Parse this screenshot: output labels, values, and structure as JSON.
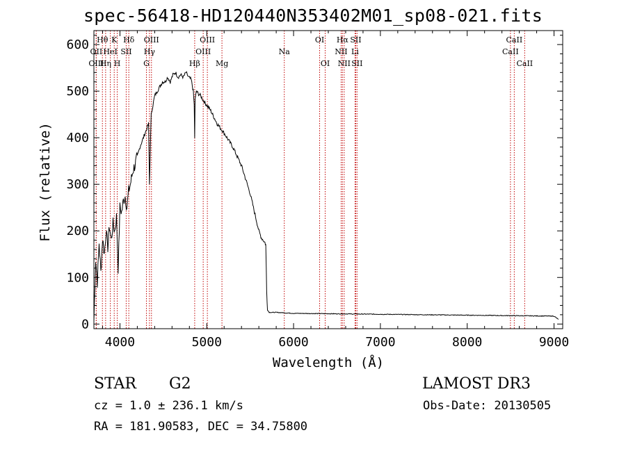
{
  "chart_data": {
    "type": "line",
    "title": "spec-56418-HD120440N353402M01_sp08-021.fits",
    "xlabel": "Wavelength (Å)",
    "ylabel": "Flux (relative)",
    "xlim": [
      3700,
      9100
    ],
    "ylim": [
      -10,
      630
    ],
    "xticks": [
      4000,
      5000,
      6000,
      7000,
      8000,
      9000
    ],
    "yticks": [
      0,
      100,
      200,
      300,
      400,
      500,
      600
    ],
    "series": [
      {
        "name": "flux",
        "x": [
          3700,
          3720,
          3740,
          3760,
          3780,
          3800,
          3820,
          3840,
          3860,
          3880,
          3900,
          3920,
          3940,
          3960,
          3980,
          4000,
          4020,
          4040,
          4060,
          4080,
          4100,
          4120,
          4150,
          4180,
          4200,
          4230,
          4260,
          4290,
          4310,
          4330,
          4340,
          4360,
          4380,
          4400,
          4430,
          4460,
          4490,
          4520,
          4550,
          4580,
          4610,
          4640,
          4670,
          4700,
          4730,
          4760,
          4790,
          4820,
          4845,
          4855,
          4861,
          4866,
          4880,
          4900,
          4930,
          4960,
          5000,
          5040,
          5080,
          5120,
          5160,
          5200,
          5250,
          5300,
          5350,
          5400,
          5450,
          5500,
          5550,
          5600,
          5630,
          5650,
          5670,
          5680,
          5690,
          5700,
          5720,
          5800,
          6000,
          6500,
          7000,
          7500,
          8000,
          8500,
          9000,
          9050
        ],
        "y": [
          5,
          140,
          90,
          175,
          110,
          185,
          150,
          200,
          165,
          210,
          180,
          215,
          200,
          230,
          120,
          250,
          240,
          265,
          275,
          250,
          285,
          300,
          330,
          345,
          360,
          380,
          395,
          410,
          420,
          430,
          300,
          450,
          470,
          490,
          500,
          510,
          520,
          520,
          530,
          520,
          535,
          540,
          530,
          535,
          530,
          540,
          530,
          525,
          500,
          470,
          400,
          480,
          500,
          495,
          490,
          480,
          470,
          460,
          445,
          430,
          420,
          410,
          395,
          380,
          360,
          340,
          310,
          280,
          240,
          200,
          185,
          180,
          175,
          170,
          70,
          30,
          25,
          25,
          23,
          22,
          21,
          20,
          19,
          18,
          17,
          10
        ]
      }
    ],
    "lines": [
      {
        "label": "Hθ",
        "wl": 3798,
        "row": 1
      },
      {
        "label": "OII",
        "wl": 3727,
        "row": 2
      },
      {
        "label": "OIII",
        "wl": 3727,
        "row": 3
      },
      {
        "label": "HeI",
        "wl": 3889,
        "row": 2
      },
      {
        "label": "Hη",
        "wl": 3835,
        "row": 3
      },
      {
        "label": "K",
        "wl": 3934,
        "row": 1
      },
      {
        "label": "SII",
        "wl": 4072,
        "row": 2
      },
      {
        "label": "H",
        "wl": 3969,
        "row": 3
      },
      {
        "label": "Hδ",
        "wl": 4102,
        "row": 1
      },
      {
        "label": "OIII",
        "wl": 4363,
        "row": 1
      },
      {
        "label": "Hγ",
        "wl": 4340,
        "row": 2
      },
      {
        "label": "G",
        "wl": 4305,
        "row": 3
      },
      {
        "label": "OIII",
        "wl": 5007,
        "row": 1
      },
      {
        "label": "OIII",
        "wl": 4959,
        "row": 2
      },
      {
        "label": "Hβ",
        "wl": 4861,
        "row": 3
      },
      {
        "label": "Mg",
        "wl": 5175,
        "row": 3
      },
      {
        "label": "Na",
        "wl": 5893,
        "row": 2
      },
      {
        "label": "OI",
        "wl": 6300,
        "row": 1
      },
      {
        "label": "OI",
        "wl": 6364,
        "row": 3
      },
      {
        "label": "Hα",
        "wl": 6563,
        "row": 1
      },
      {
        "label": "NII",
        "wl": 6548,
        "row": 2
      },
      {
        "label": "NII",
        "wl": 6583,
        "row": 3
      },
      {
        "label": "SII",
        "wl": 6716,
        "row": 1
      },
      {
        "label": "Li",
        "wl": 6708,
        "row": 2
      },
      {
        "label": "SII",
        "wl": 6731,
        "row": 3
      },
      {
        "label": "CaII",
        "wl": 8542,
        "row": 1
      },
      {
        "label": "CaII",
        "wl": 8498,
        "row": 2
      },
      {
        "label": "CaII",
        "wl": 8662,
        "row": 3
      }
    ]
  },
  "info": {
    "obj_class": "STAR",
    "subclass": "G2",
    "cz": "cz = 1.0 ± 236.1 km/s",
    "radec": "RA = 181.90583, DEC =  34.75800",
    "survey": "LAMOST DR3",
    "obs_date": "Obs-Date: 20130505"
  }
}
